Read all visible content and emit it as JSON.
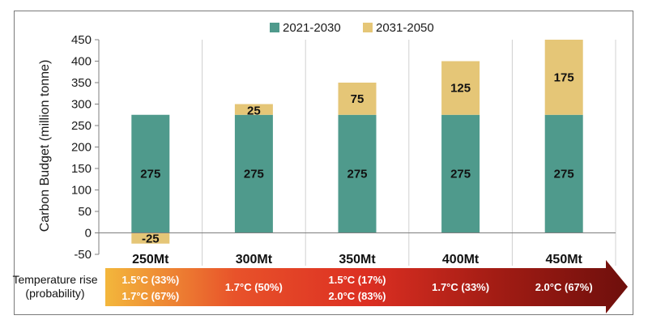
{
  "chart_data": {
    "type": "bar",
    "stacked": true,
    "title": "",
    "xlabel": "",
    "ylabel": "Carbon Budget (million tonne)",
    "ylim": [
      -50,
      450
    ],
    "yticks": [
      450,
      400,
      350,
      300,
      250,
      200,
      150,
      100,
      50,
      0,
      -50
    ],
    "grid": "vertical category separators",
    "legend_position": "top-center",
    "categories": [
      "250Mt",
      "300Mt",
      "350Mt",
      "400Mt",
      "450Mt"
    ],
    "series": [
      {
        "name": "2021-2030",
        "color": "#4f9a8c",
        "values": [
          275,
          275,
          275,
          275,
          275
        ],
        "labels": [
          "275",
          "275",
          "275",
          "275",
          "275"
        ]
      },
      {
        "name": "2031-2050",
        "color": "#e5c677",
        "values": [
          -25,
          25,
          75,
          125,
          175
        ],
        "labels": [
          "-25",
          "25",
          "75",
          "125",
          "175"
        ]
      }
    ],
    "annotation_band": {
      "label_lines": [
        "Temperature rise",
        "(probability)"
      ],
      "gradient_colors": [
        "#f3b73c",
        "#e8522a",
        "#dc2f22",
        "#a21c14",
        "#6e0f0c"
      ],
      "cells": [
        [
          "1.5°C (33%)",
          "1.7°C (67%)"
        ],
        [
          "1.7°C (50%)"
        ],
        [
          "1.5°C (17%)",
          "2.0°C (83%)"
        ],
        [
          "1.7°C (33%)"
        ],
        [
          "2.0°C (67%)"
        ]
      ]
    }
  }
}
